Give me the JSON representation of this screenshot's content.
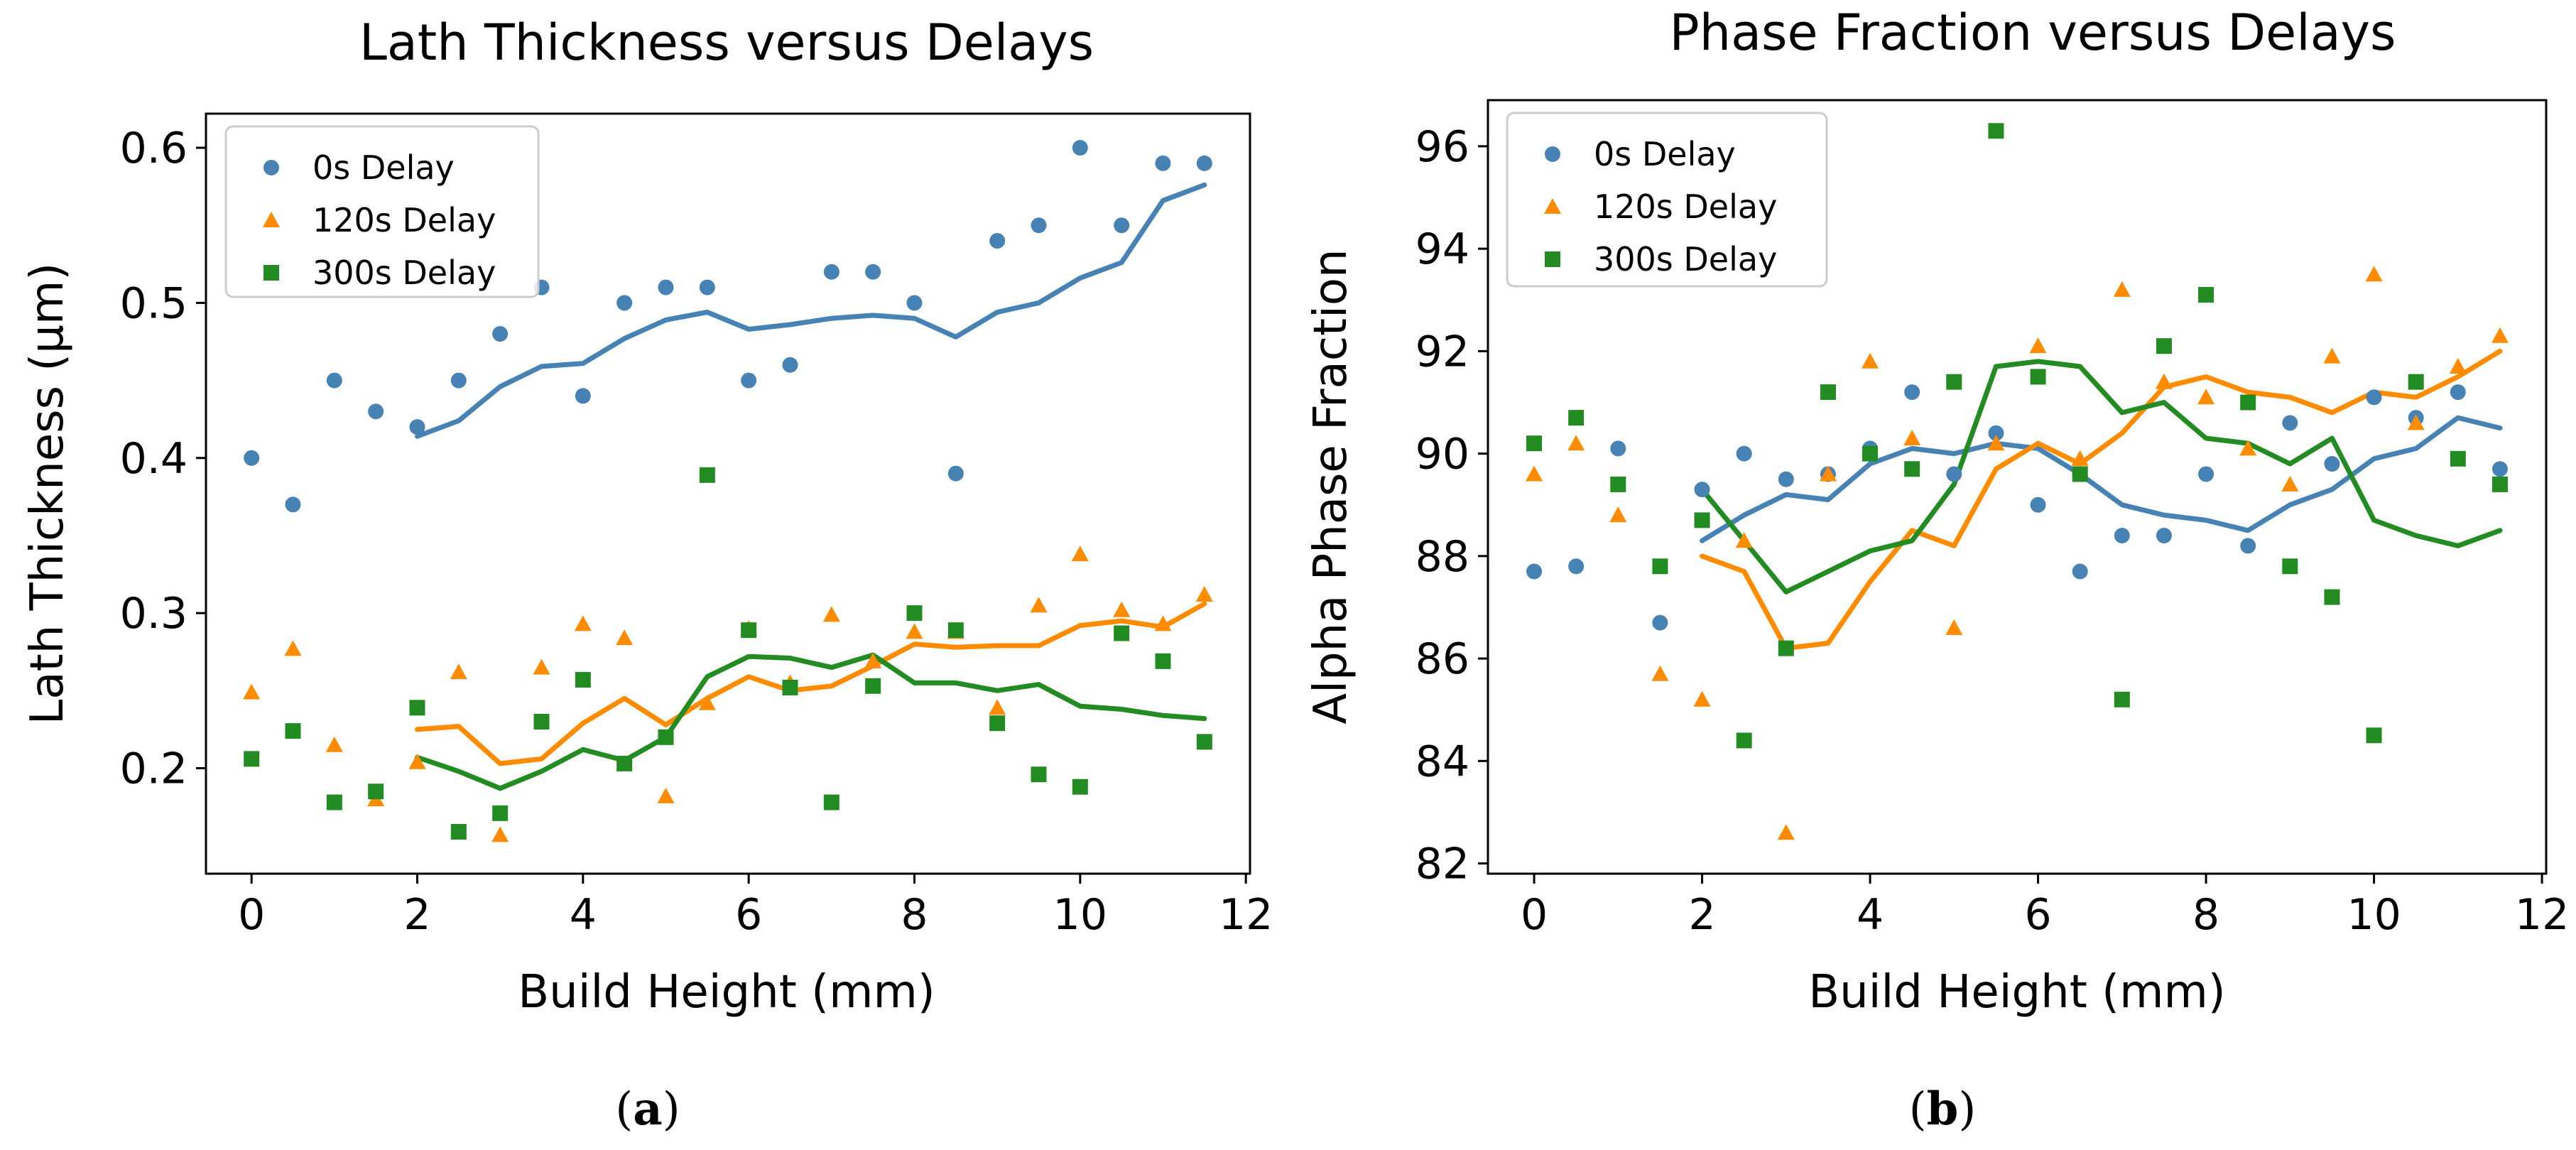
{
  "colors": {
    "s0": "#4682b4",
    "s120": "#ff8c00",
    "s300": "#228b22",
    "axis": "#000000",
    "legend_border": "#cccccc"
  },
  "chart_data": [
    {
      "type": "scatter",
      "panel": "a",
      "caption_letter": "a",
      "title": "Lath Thickness versus Delays",
      "xlabel": "Build Height (mm)",
      "ylabel": "Lath Thickness (µm)",
      "xlim": [
        -0.55,
        12.05
      ],
      "ylim": [
        0.132,
        0.622
      ],
      "xticks": [
        0,
        2,
        4,
        6,
        8,
        10,
        12
      ],
      "yticks": [
        0.2,
        0.3,
        0.4,
        0.5,
        0.6
      ],
      "ytick_labels": [
        "0.2",
        "0.3",
        "0.4",
        "0.5",
        "0.6"
      ],
      "legend_loc": "upper-left",
      "series": [
        {
          "name": "0s Delay",
          "key": "s0",
          "marker": "circle",
          "x": [
            0,
            0.5,
            1,
            1.5,
            2,
            2.5,
            3,
            3.5,
            4,
            4.5,
            5,
            5.5,
            6,
            6.5,
            7,
            7.5,
            8,
            8.5,
            9,
            9.5,
            10,
            10.5,
            11,
            11.5
          ],
          "y": [
            0.4,
            0.37,
            0.45,
            0.43,
            0.42,
            0.45,
            0.48,
            0.51,
            0.44,
            0.5,
            0.51,
            0.51,
            0.45,
            0.46,
            0.52,
            0.52,
            0.5,
            0.39,
            0.54,
            0.55,
            0.6,
            0.55,
            0.59,
            0.59
          ],
          "trend_x": [
            2,
            2.5,
            3,
            3.5,
            4,
            4.5,
            5,
            5.5,
            6,
            6.5,
            7,
            7.5,
            8,
            8.5,
            9,
            9.5,
            10,
            10.5,
            11,
            11.5
          ],
          "trend_y": [
            0.414,
            0.424,
            0.446,
            0.459,
            0.461,
            0.477,
            0.489,
            0.494,
            0.483,
            0.486,
            0.49,
            0.492,
            0.49,
            0.478,
            0.494,
            0.5,
            0.516,
            0.526,
            0.566,
            0.576
          ]
        },
        {
          "name": "120s Delay",
          "key": "s120",
          "marker": "triangle",
          "x": [
            0,
            0.5,
            1,
            1.5,
            2,
            2.5,
            3,
            3.5,
            4,
            4.5,
            5,
            5.5,
            6,
            6.5,
            7,
            7.5,
            8,
            8.5,
            9,
            9.5,
            10,
            10.5,
            11,
            11.5
          ],
          "y": [
            0.249,
            0.277,
            0.215,
            0.18,
            0.204,
            0.262,
            0.157,
            0.265,
            0.293,
            0.284,
            0.182,
            0.242,
            0.29,
            0.255,
            0.299,
            0.269,
            0.288,
            0.288,
            0.239,
            0.305,
            0.338,
            0.302,
            0.293,
            0.312
          ],
          "trend_x": [
            2,
            2.5,
            3,
            3.5,
            4,
            4.5,
            5,
            5.5,
            6,
            6.5,
            7,
            7.5,
            8,
            8.5,
            9,
            9.5,
            10,
            10.5,
            11,
            11.5
          ],
          "trend_y": [
            0.225,
            0.227,
            0.203,
            0.206,
            0.229,
            0.245,
            0.228,
            0.245,
            0.259,
            0.25,
            0.253,
            0.266,
            0.28,
            0.278,
            0.279,
            0.279,
            0.292,
            0.295,
            0.291,
            0.306
          ]
        },
        {
          "name": "300s Delay",
          "key": "s300",
          "marker": "square",
          "x": [
            0,
            0.5,
            1,
            1.5,
            2,
            2.5,
            3,
            3.5,
            4,
            4.5,
            5,
            5.5,
            6,
            6.5,
            7,
            7.5,
            8,
            8.5,
            9,
            9.5,
            10,
            10.5,
            11,
            11.5
          ],
          "y": [
            0.206,
            0.224,
            0.178,
            0.185,
            0.239,
            0.159,
            0.171,
            0.23,
            0.257,
            0.203,
            0.22,
            0.389,
            0.289,
            0.252,
            0.178,
            0.253,
            0.3,
            0.289,
            0.229,
            0.196,
            0.188,
            0.287,
            0.269,
            0.217
          ],
          "trend_x": [
            2,
            2.5,
            3,
            3.5,
            4,
            4.5,
            5,
            5.5,
            6,
            6.5,
            7,
            7.5,
            8,
            8.5,
            9,
            9.5,
            10,
            10.5,
            11,
            11.5
          ],
          "trend_y": [
            0.207,
            0.198,
            0.187,
            0.198,
            0.212,
            0.205,
            0.22,
            0.259,
            0.272,
            0.271,
            0.265,
            0.273,
            0.255,
            0.255,
            0.25,
            0.254,
            0.24,
            0.238,
            0.234,
            0.232
          ]
        }
      ]
    },
    {
      "type": "scatter",
      "panel": "b",
      "caption_letter": "b",
      "title": "Phase Fraction versus Delays",
      "xlabel": "Build Height (mm)",
      "ylabel": "Alpha Phase Fraction",
      "xlim": [
        -0.55,
        12.05
      ],
      "ylim": [
        81.8,
        96.9
      ],
      "xticks": [
        0,
        2,
        4,
        6,
        8,
        10,
        12
      ],
      "yticks": [
        82,
        84,
        86,
        88,
        90,
        92,
        94,
        96
      ],
      "ytick_labels": [
        "82",
        "84",
        "86",
        "88",
        "90",
        "92",
        "94",
        "96"
      ],
      "legend_loc": "upper-left",
      "series": [
        {
          "name": "0s Delay",
          "key": "s0",
          "marker": "circle",
          "x": [
            0,
            0.5,
            1,
            1.5,
            2,
            2.5,
            3,
            3.5,
            4,
            4.5,
            5,
            5.5,
            6,
            6.5,
            7,
            7.5,
            8,
            8.5,
            9,
            9.5,
            10,
            10.5,
            11,
            11.5
          ],
          "y": [
            87.7,
            87.8,
            90.1,
            86.7,
            89.3,
            90.0,
            89.5,
            89.6,
            90.1,
            91.2,
            89.6,
            90.4,
            89.0,
            87.7,
            88.4,
            88.4,
            89.6,
            88.2,
            90.6,
            89.8,
            91.1,
            90.7,
            91.2,
            89.7
          ],
          "trend_x": [
            2,
            2.5,
            3,
            3.5,
            4,
            4.5,
            5,
            5.5,
            6,
            6.5,
            7,
            7.5,
            8,
            8.5,
            9,
            9.5,
            10,
            10.5,
            11,
            11.5
          ],
          "trend_y": [
            88.3,
            88.8,
            89.2,
            89.1,
            89.8,
            90.1,
            90.0,
            90.2,
            90.1,
            89.6,
            89.0,
            88.8,
            88.7,
            88.5,
            89.0,
            89.3,
            89.9,
            90.1,
            90.7,
            90.5
          ]
        },
        {
          "name": "120s Delay",
          "key": "s120",
          "marker": "triangle",
          "x": [
            0,
            0.5,
            1,
            1.5,
            2,
            2.5,
            3,
            3.5,
            4,
            4.5,
            5,
            5.5,
            6,
            6.5,
            7,
            7.5,
            8,
            8.5,
            9,
            9.5,
            10,
            10.5,
            11,
            11.5
          ],
          "y": [
            89.6,
            90.2,
            88.8,
            85.7,
            85.2,
            88.3,
            82.6,
            89.6,
            91.8,
            90.3,
            86.6,
            90.2,
            92.1,
            89.9,
            93.2,
            91.4,
            91.1,
            90.1,
            89.4,
            91.9,
            93.5,
            90.6,
            91.7,
            92.3
          ],
          "trend_x": [
            2,
            2.5,
            3,
            3.5,
            4,
            4.5,
            5,
            5.5,
            6,
            6.5,
            7,
            7.5,
            8,
            8.5,
            9,
            9.5,
            10,
            10.5,
            11,
            11.5
          ],
          "trend_y": [
            88.0,
            87.7,
            86.2,
            86.3,
            87.5,
            88.5,
            88.2,
            89.7,
            90.2,
            89.8,
            90.4,
            91.3,
            91.5,
            91.2,
            91.1,
            90.8,
            91.2,
            91.1,
            91.5,
            92.0
          ]
        },
        {
          "name": "300s Delay",
          "key": "s300",
          "marker": "square",
          "x": [
            0,
            0.5,
            1,
            1.5,
            2,
            2.5,
            3,
            3.5,
            4,
            4.5,
            5,
            5.5,
            6,
            6.5,
            7,
            7.5,
            8,
            8.5,
            9,
            9.5,
            10,
            10.5,
            11,
            11.5
          ],
          "y": [
            90.2,
            90.7,
            89.4,
            87.8,
            88.7,
            84.4,
            86.2,
            91.2,
            90.0,
            89.7,
            91.4,
            96.3,
            91.5,
            89.6,
            85.2,
            92.1,
            93.1,
            91.0,
            87.8,
            87.2,
            84.5,
            91.4,
            89.9,
            89.4
          ],
          "trend_x": [
            2,
            2.5,
            3,
            3.5,
            4,
            4.5,
            5,
            5.5,
            6,
            6.5,
            7,
            7.5,
            8,
            8.5,
            9,
            9.5,
            10,
            10.5,
            11,
            11.5
          ],
          "trend_y": [
            89.3,
            88.3,
            87.3,
            87.7,
            88.1,
            88.3,
            89.4,
            91.7,
            91.8,
            91.7,
            90.8,
            91.0,
            90.3,
            90.2,
            89.8,
            90.3,
            88.7,
            88.4,
            88.2,
            88.5
          ]
        }
      ]
    }
  ]
}
